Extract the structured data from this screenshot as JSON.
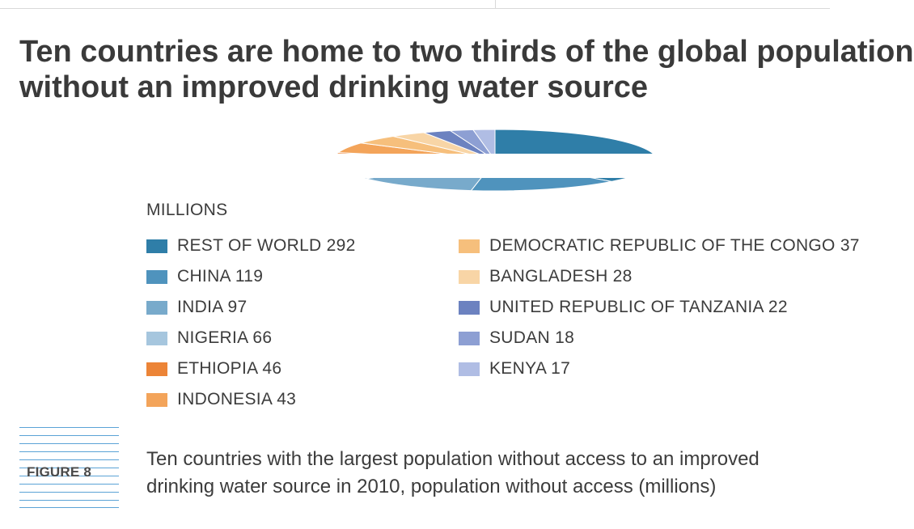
{
  "title_lines": [
    "Ten countries are home to two thirds of the global population",
    "without an improved drinking water source"
  ],
  "legend_header": "MILLIONS",
  "legend_items": [
    {
      "label": "REST OF WORLD 292",
      "color": "#2f7ea8"
    },
    {
      "label": "CHINA 119",
      "color": "#4f93bd"
    },
    {
      "label": "INDIA 97",
      "color": "#78aacb"
    },
    {
      "label": "NIGERIA 66",
      "color": "#a6c6de"
    },
    {
      "label": "ETHIOPIA 46",
      "color": "#ec8437"
    },
    {
      "label": "INDONESIA 43",
      "color": "#f3a45a"
    },
    {
      "label": "DEMOCRATIC REPUBLIC OF THE CONGO 37",
      "color": "#f6bf7c"
    },
    {
      "label": "BANGLADESH 28",
      "color": "#f8d5a6"
    },
    {
      "label": "UNITED REPUBLIC OF TANZANIA 22",
      "color": "#6c82c0"
    },
    {
      "label": "SUDAN 18",
      "color": "#8d9fd3"
    },
    {
      "label": "KENYA 17",
      "color": "#b0bde4"
    }
  ],
  "figure_label": "FIGURE 8",
  "caption_lines": [
    "Ten countries with the largest population without access to an improved",
    "drinking water source in 2010, population without access (millions)"
  ],
  "chart_data": {
    "type": "pie",
    "title": "Ten countries are home to two thirds of the global population without an improved drinking water source",
    "unit": "MILLIONS",
    "categories": [
      "REST OF WORLD",
      "CHINA",
      "INDIA",
      "NIGERIA",
      "ETHIOPIA",
      "INDONESIA",
      "DEMOCRATIC REPUBLIC OF THE CONGO",
      "BANGLADESH",
      "UNITED REPUBLIC OF TANZANIA",
      "SUDAN",
      "KENYA"
    ],
    "values": [
      292,
      119,
      97,
      66,
      46,
      43,
      37,
      28,
      22,
      18,
      17
    ],
    "colors": [
      "#2f7ea8",
      "#4f93bd",
      "#78aacb",
      "#a6c6de",
      "#ec8437",
      "#f3a45a",
      "#f6bf7c",
      "#f8d5a6",
      "#6c82c0",
      "#8d9fd3",
      "#b0bde4"
    ],
    "legend": "below"
  }
}
